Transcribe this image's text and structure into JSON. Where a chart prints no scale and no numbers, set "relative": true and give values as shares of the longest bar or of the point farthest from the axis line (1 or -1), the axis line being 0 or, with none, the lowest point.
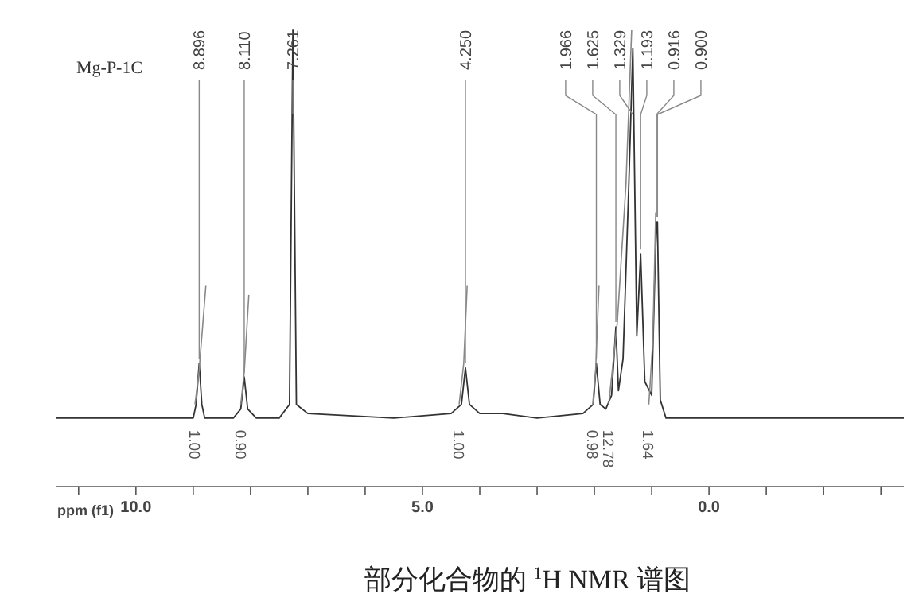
{
  "chart_data": {
    "type": "line",
    "relative": true,
    "title": "部分化合物的 $^{1}$H NMR 谱图",
    "xlabel": "ppm (f1)",
    "xlim": [
      11.4,
      -3.4
    ],
    "xticks": [
      {
        "value": 11,
        "label": null
      },
      {
        "value": 10,
        "label": "10.0"
      },
      {
        "value": 9,
        "label": null
      },
      {
        "value": 8,
        "label": null
      },
      {
        "value": 7,
        "label": null
      },
      {
        "value": 6,
        "label": null
      },
      {
        "value": 5,
        "label": "5.0"
      },
      {
        "value": 4,
        "label": null
      },
      {
        "value": 3,
        "label": null
      },
      {
        "value": 2,
        "label": null
      },
      {
        "value": 1,
        "label": null
      },
      {
        "value": 0,
        "label": "0.0"
      },
      {
        "value": -1,
        "label": null
      },
      {
        "value": -2,
        "label": null
      },
      {
        "value": -3,
        "label": null
      }
    ],
    "tick_labels": "x",
    "series": [
      {
        "color": "#333333",
        "x": [
          11.4,
          9.2,
          9.0,
          8.95,
          8.896,
          8.85,
          8.8,
          8.3,
          8.17,
          8.11,
          8.05,
          7.9,
          7.5,
          7.32,
          7.261,
          7.2,
          7.0,
          5.5,
          4.5,
          4.32,
          4.25,
          4.18,
          4.0,
          3.8,
          3.6,
          3.0,
          2.2,
          2.02,
          1.966,
          1.9,
          1.8,
          1.7,
          1.625,
          1.58,
          1.5,
          1.4,
          1.329,
          1.26,
          1.193,
          1.12,
          1.0,
          0.94,
          0.916,
          0.908,
          0.9,
          0.85,
          0.75,
          0.0,
          -1.5,
          -3.4
        ],
        "values": [
          0.15,
          0.15,
          0.15,
          0.18,
          0.27,
          0.18,
          0.15,
          0.15,
          0.17,
          0.24,
          0.17,
          0.15,
          0.15,
          0.18,
          1.0,
          0.18,
          0.16,
          0.15,
          0.16,
          0.18,
          0.26,
          0.18,
          0.16,
          0.16,
          0.16,
          0.15,
          0.16,
          0.18,
          0.27,
          0.18,
          0.17,
          0.2,
          0.35,
          0.21,
          0.28,
          0.66,
          0.96,
          0.33,
          0.51,
          0.23,
          0.2,
          0.49,
          0.58,
          0.56,
          0.58,
          0.19,
          0.15,
          0.15,
          0.15,
          0.15
        ]
      },
      {
        "color": "#888888",
        "x": [
          8.97,
          8.9,
          8.78
        ],
        "values": [
          0.18,
          0.25,
          0.44
        ]
      },
      {
        "color": "#888888",
        "x": [
          8.17,
          8.11,
          8.03
        ],
        "values": [
          0.18,
          0.25,
          0.42
        ]
      },
      {
        "color": "#888888",
        "x": [
          4.36,
          4.28,
          4.22
        ],
        "values": [
          0.18,
          0.27,
          0.44
        ]
      },
      {
        "color": "#888888",
        "x": [
          2.03,
          1.98,
          1.92
        ],
        "values": [
          0.18,
          0.25,
          0.44
        ]
      },
      {
        "color": "#888888",
        "x": [
          1.75,
          1.6,
          1.45,
          1.35
        ],
        "values": [
          0.18,
          0.36,
          0.66,
          1.0
        ]
      },
      {
        "color": "#888888",
        "x": [
          1.05,
          0.98,
          0.93
        ],
        "values": [
          0.18,
          0.32,
          0.6
        ]
      }
    ],
    "annotations": [
      "Mg-P-1C",
      {
        "text": "8.896",
        "x": 8.896,
        "y": 0.27
      },
      {
        "text": "8.110",
        "x": 8.11,
        "y": 0.24
      },
      {
        "text": "7.261",
        "x": 7.261,
        "y": 1.0
      },
      {
        "text": "4.250",
        "x": 4.25,
        "y": 0.26
      },
      {
        "text": "1.966",
        "x": 1.966,
        "y": 0.27
      },
      {
        "text": "1.625",
        "x": 1.625,
        "y": 0.35
      },
      {
        "text": "1.329",
        "x": 1.329,
        "y": 0.96
      },
      {
        "text": "1.193",
        "x": 1.193,
        "y": 0.51
      },
      {
        "text": "0.916",
        "x": 0.916,
        "y": 0.58
      },
      {
        "text": "0.900",
        "x": 0.9,
        "y": 0.58
      },
      {
        "text": "1.00",
        "x": 8.97,
        "y": 0.18
      },
      {
        "text": "0.90",
        "x": 8.17,
        "y": 0.18
      },
      {
        "text": "1.00",
        "x": 4.36,
        "y": 0.18
      },
      {
        "text": "0.98",
        "x": 2.03,
        "y": 0.18
      },
      {
        "text": "12.78",
        "x": 1.75,
        "y": 0.18
      },
      {
        "text": "1.64",
        "x": 1.05,
        "y": 0.18
      }
    ]
  }
}
